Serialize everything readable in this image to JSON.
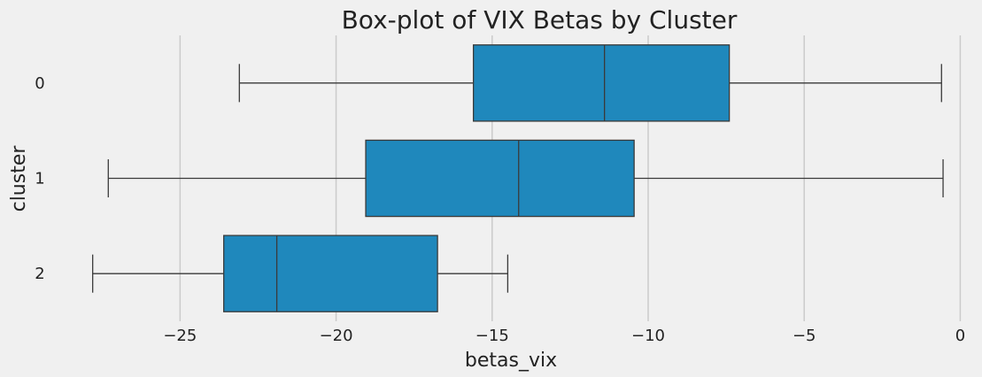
{
  "chart_data": {
    "type": "boxplot",
    "orientation": "horizontal",
    "title": "Box-plot of VIX Betas by Cluster",
    "xlabel": "betas_vix",
    "ylabel": "cluster",
    "xlim": [
      -28.5,
      0.3
    ],
    "xticks": [
      -25,
      -20,
      -15,
      -10,
      -5,
      0
    ],
    "xtick_labels": [
      "−25",
      "−20",
      "−15",
      "−10",
      "−5",
      "0"
    ],
    "grid": "vertical",
    "box_color": "#1f88bc",
    "line_color": "#3a3a3a",
    "categories": [
      "0",
      "1",
      "2"
    ],
    "boxes": [
      {
        "category": "0",
        "whisker_low": -23.1,
        "q1": -15.6,
        "median": -11.4,
        "q3": -7.4,
        "whisker_high": -0.6
      },
      {
        "category": "1",
        "whisker_low": -27.3,
        "q1": -19.05,
        "median": -14.15,
        "q3": -10.45,
        "whisker_high": -0.55
      },
      {
        "category": "2",
        "whisker_low": -27.8,
        "q1": -23.6,
        "median": -21.9,
        "q3": -16.75,
        "whisker_high": -14.5
      }
    ]
  }
}
